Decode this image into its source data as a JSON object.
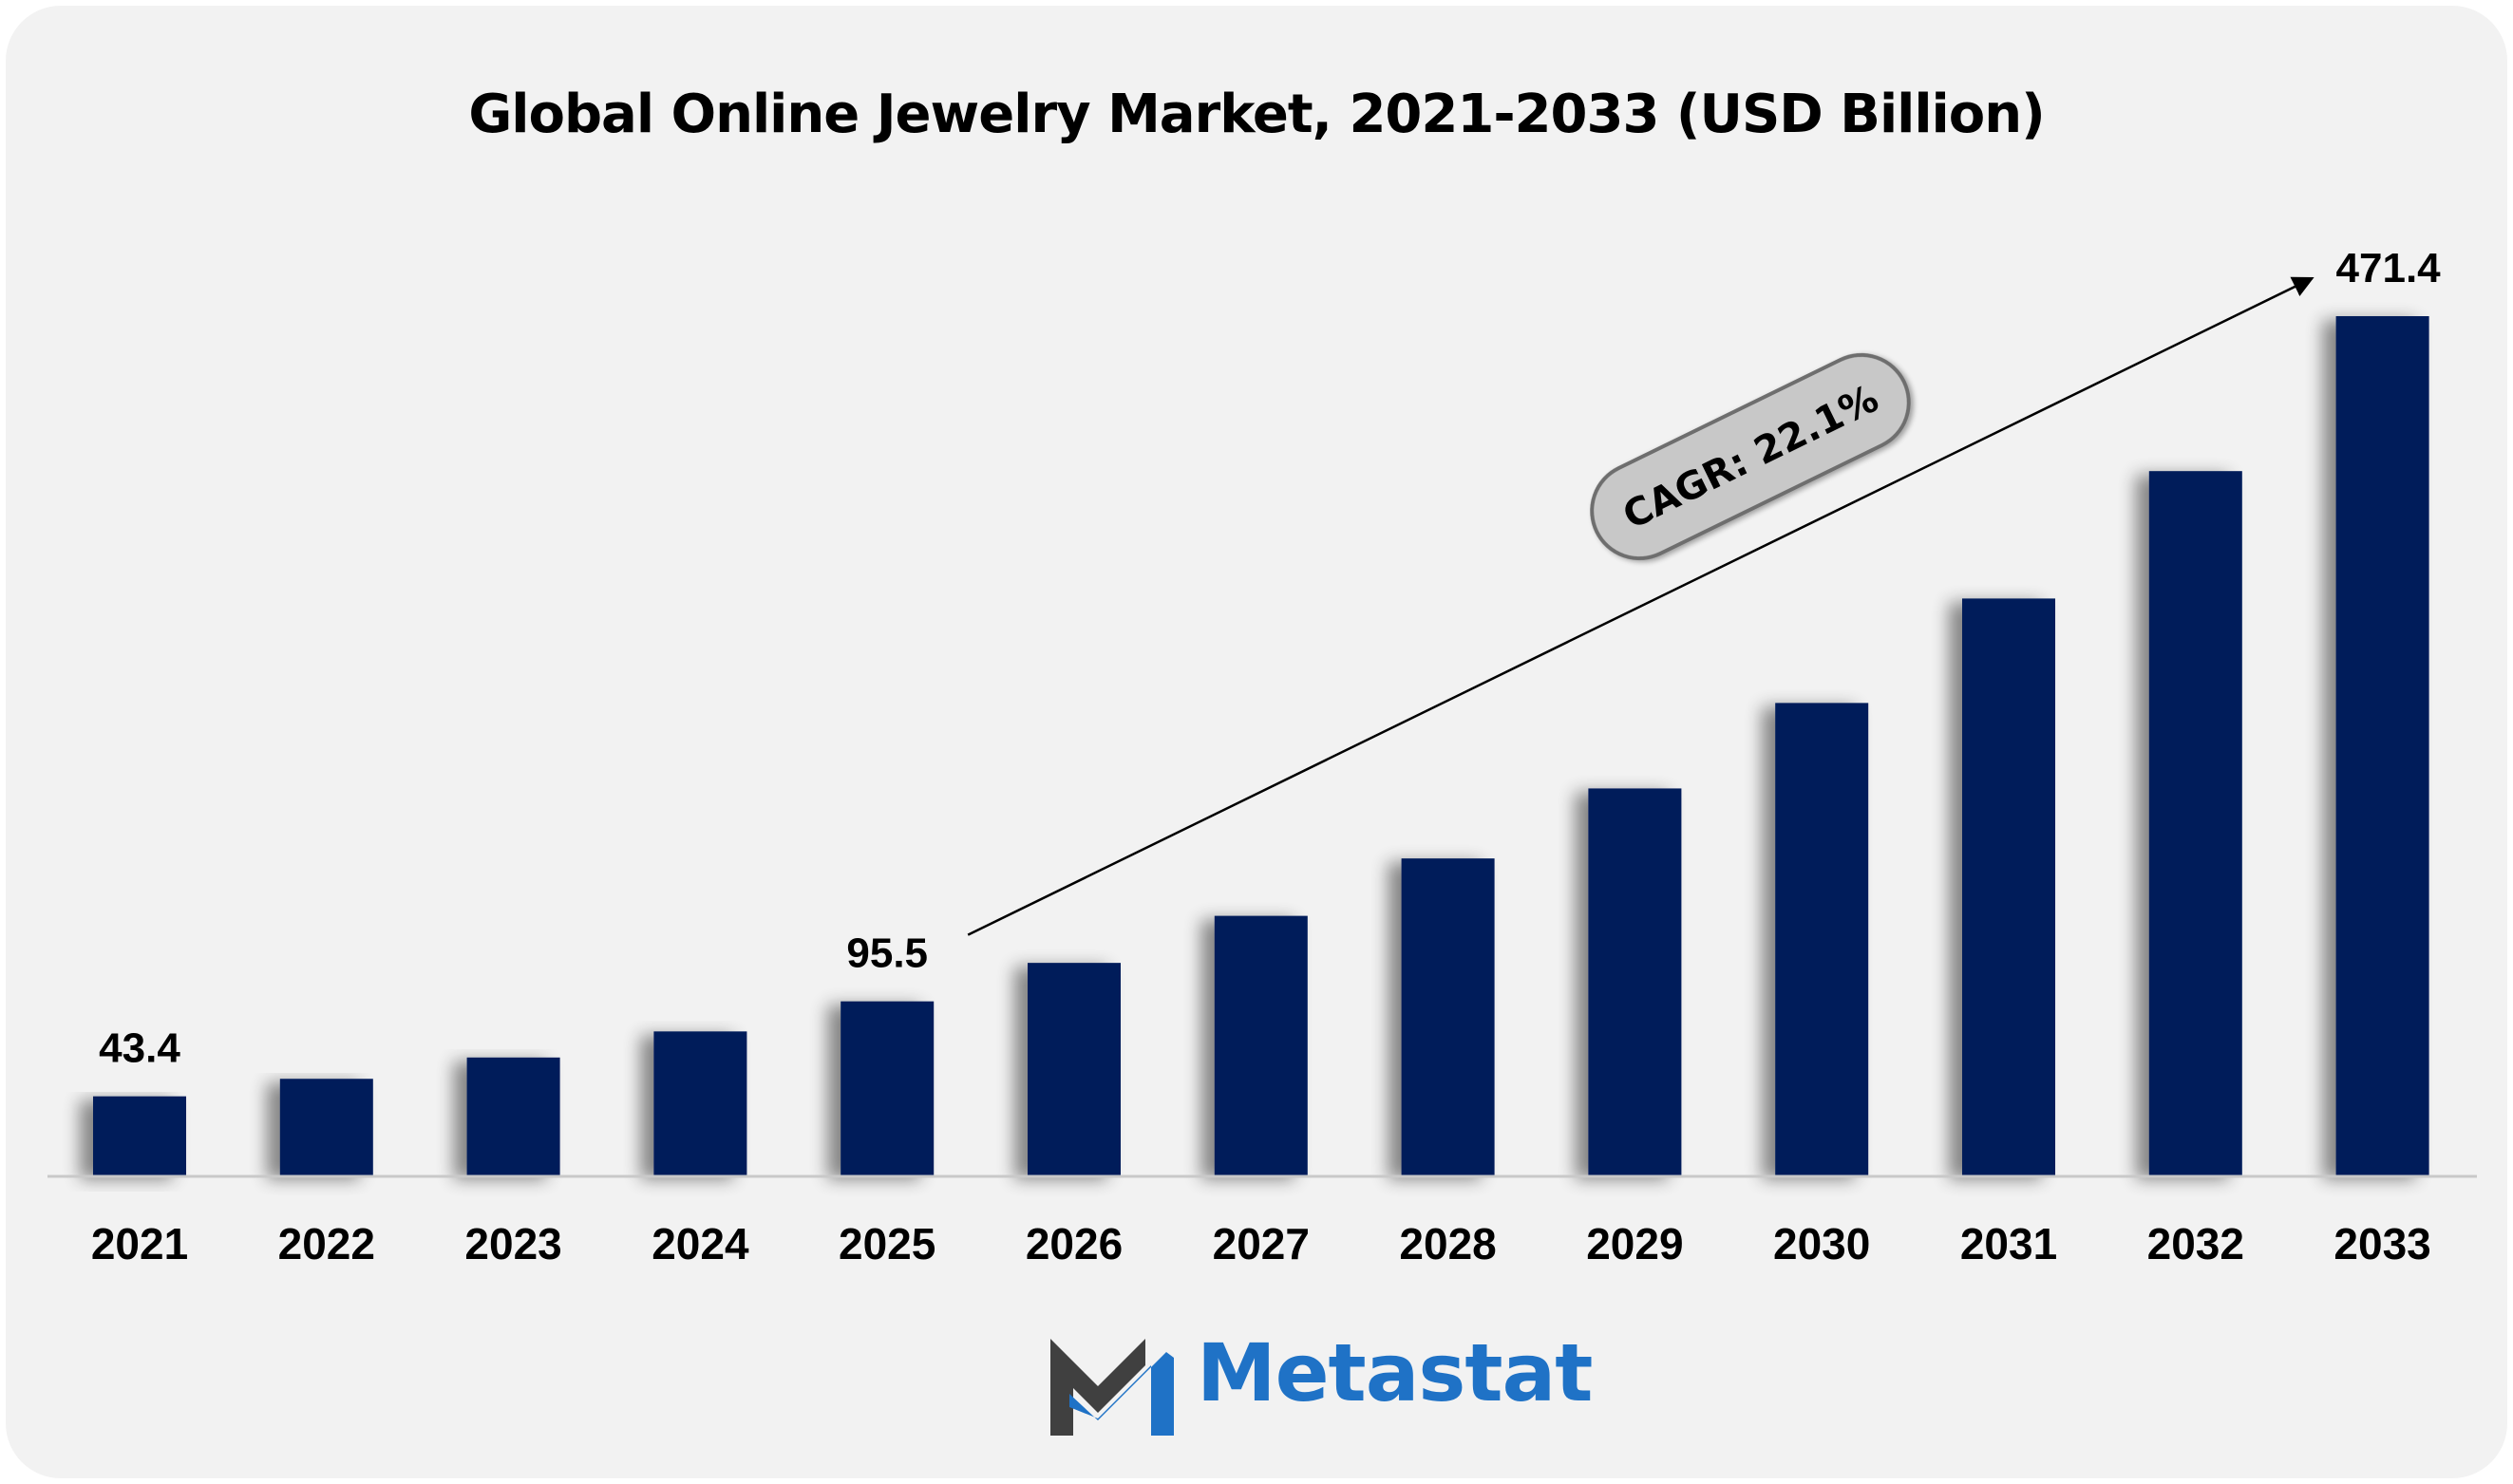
{
  "chart_data": {
    "type": "bar",
    "title": "Global Online Jewelry Market, 2021-2033 (USD Billion)",
    "categories": [
      "2021",
      "2022",
      "2023",
      "2024",
      "2025",
      "2026",
      "2027",
      "2028",
      "2029",
      "2030",
      "2031",
      "2032",
      "2033"
    ],
    "values": [
      43.4,
      53.0,
      64.7,
      79.0,
      95.5,
      116.6,
      142.4,
      173.9,
      212.3,
      259.2,
      316.5,
      386.4,
      471.4
    ],
    "data_labels": [
      {
        "index": 0,
        "text": "43.4"
      },
      {
        "index": 4,
        "text": "95.5"
      },
      {
        "index": 12,
        "text": "471.4"
      }
    ],
    "annotation": {
      "text": "CAGR: 22.1%",
      "from_index": 4,
      "to_index": 12
    },
    "bar_color": "#021c5a",
    "xlabel": "",
    "ylabel": "",
    "ylim": [
      0,
      500
    ],
    "grid": false,
    "legend": "none"
  },
  "brand": {
    "name": "Metastat",
    "logo_icon": "metastat-m-logo-icon",
    "colors": {
      "dark": "#404040",
      "blue": "#1f72c6"
    }
  }
}
